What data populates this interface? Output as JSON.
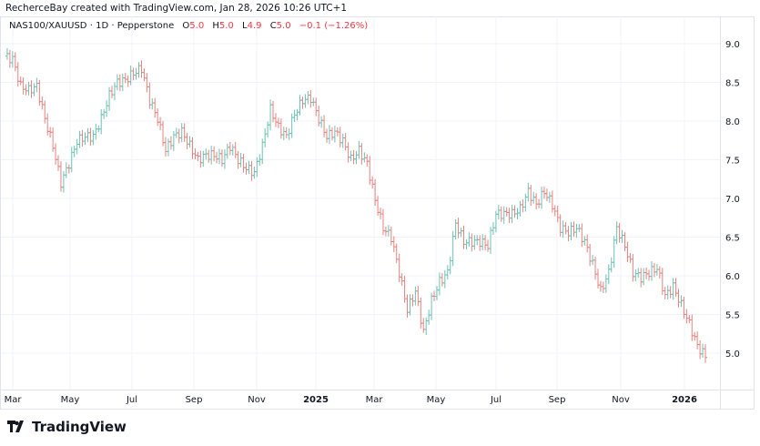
{
  "credit": "RecherceBay created with TradingView.com, Jan 28, 2026 10:26 UTC+1",
  "legend": {
    "symbol": "NAS100/XAUUSD",
    "interval": "1D",
    "source": "Pepperstone",
    "sep": "·",
    "o_label": "O",
    "o": "5.0",
    "h_label": "H",
    "h": "5.0",
    "l_label": "L",
    "l": "4.9",
    "c_label": "C",
    "c": "5.0",
    "change": "−0.1 (−1.26%)"
  },
  "brand": "TradingView",
  "colors": {
    "up": "#6cc0b3",
    "down": "#e3837f",
    "grid": "#f0f3fa",
    "text_down": "#f23645"
  },
  "chart_data": {
    "type": "ohlc-bar",
    "ylim": [
      4.6,
      9.45
    ],
    "y_ticks": [
      "5.0",
      "5.5",
      "6.0",
      "6.5",
      "7.0",
      "7.5",
      "8.0",
      "8.5",
      "9.0"
    ],
    "x_ticks": [
      "Mar",
      "May",
      "Jul",
      "Sep",
      "Nov",
      "2025",
      "Mar",
      "May",
      "Jul",
      "Sep",
      "Nov",
      "2026"
    ],
    "grid": true,
    "closes": [
      8.84,
      8.8,
      8.45,
      8.4,
      8.45,
      8.03,
      7.68,
      7.2,
      7.45,
      7.74,
      7.8,
      7.8,
      8.03,
      8.33,
      8.5,
      8.53,
      8.62,
      8.68,
      8.27,
      8.03,
      7.62,
      7.8,
      7.86,
      7.68,
      7.5,
      7.56,
      7.56,
      7.5,
      7.68,
      7.5,
      7.39,
      7.33,
      7.68,
      8.15,
      7.92,
      7.8,
      8.09,
      8.27,
      8.3,
      8.03,
      7.8,
      7.86,
      7.74,
      7.5,
      7.62,
      7.45,
      6.98,
      6.62,
      6.5,
      6.04,
      5.56,
      5.8,
      5.27,
      5.68,
      5.92,
      6.04,
      6.68,
      6.44,
      6.44,
      6.44,
      6.39,
      6.8,
      6.8,
      6.8,
      6.86,
      7.09,
      6.92,
      7.09,
      6.92,
      6.62,
      6.56,
      6.62,
      6.44,
      6.15,
      5.8,
      6.04,
      6.62,
      6.39,
      6.04,
      5.98,
      6.04,
      6.1,
      5.74,
      5.86,
      5.62,
      5.38,
      5.09,
      4.96
    ]
  }
}
